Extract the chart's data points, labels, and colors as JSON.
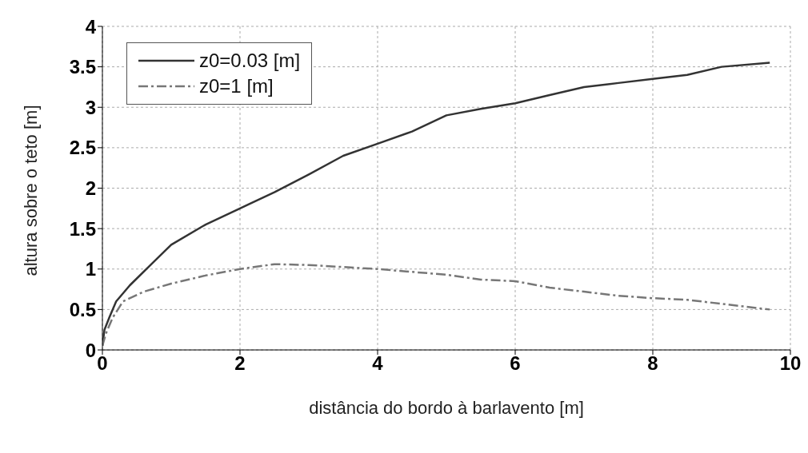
{
  "chart_data": {
    "type": "line",
    "xlabel": "distância do bordo à barlavento [m]",
    "ylabel": "altura sobre o teto [m]",
    "xlim": [
      0,
      10
    ],
    "xticks": [
      0,
      2,
      4,
      6,
      8,
      10
    ],
    "ylim": [
      0,
      4
    ],
    "yticks": [
      0,
      0.5,
      1,
      1.5,
      2,
      2.5,
      3,
      3.5,
      4
    ],
    "grid": true,
    "legend": "top left",
    "marker": "none",
    "series": [
      {
        "name": "z0=0.03 [m]",
        "color": "#333333",
        "line_style": "solid",
        "x": [
          0,
          0.03,
          0.1,
          0.2,
          0.4,
          0.7,
          1,
          1.5,
          2,
          2.5,
          3,
          3.5,
          4,
          4.5,
          5,
          5.5,
          6,
          6.5,
          7,
          7.5,
          8,
          8.5,
          9,
          9.7
        ],
        "values": [
          0.05,
          0.25,
          0.4,
          0.6,
          0.8,
          1.05,
          1.3,
          1.55,
          1.75,
          1.95,
          2.17,
          2.4,
          2.55,
          2.7,
          2.9,
          2.98,
          3.05,
          3.15,
          3.25,
          3.3,
          3.35,
          3.4,
          3.5,
          3.55
        ]
      },
      {
        "name": "z0=1 [m]",
        "color": "#777777",
        "line_style": "dashdot",
        "x": [
          0,
          0.05,
          0.15,
          0.3,
          0.6,
          1,
          1.5,
          2,
          2.5,
          3,
          4,
          5,
          5.5,
          6,
          6.5,
          7,
          7.5,
          8,
          8.5,
          9,
          9.7
        ],
        "values": [
          0.05,
          0.2,
          0.4,
          0.6,
          0.72,
          0.82,
          0.92,
          1.0,
          1.06,
          1.05,
          1.0,
          0.93,
          0.87,
          0.85,
          0.77,
          0.72,
          0.67,
          0.64,
          0.62,
          0.57,
          0.5
        ]
      }
    ]
  }
}
